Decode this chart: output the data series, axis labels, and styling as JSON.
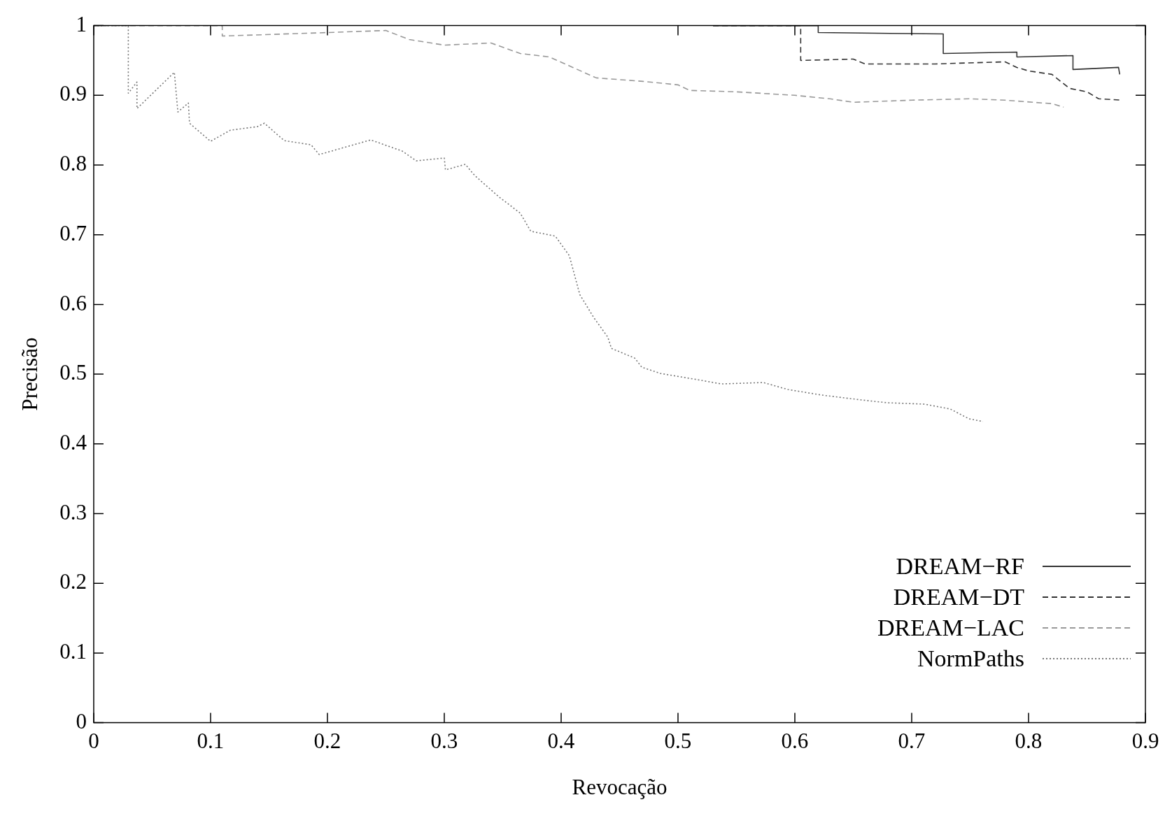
{
  "chart_data": {
    "type": "line",
    "xlabel": "Revocação",
    "ylabel": "Precisão",
    "xlim": [
      0,
      0.9
    ],
    "xticks": [
      0,
      0.1,
      0.2,
      0.3,
      0.4,
      0.5,
      0.6,
      0.7,
      0.8,
      0.9
    ],
    "ylim": [
      0,
      1
    ],
    "yticks": [
      0,
      0.1,
      0.2,
      0.3,
      0.4,
      0.5,
      0.6,
      0.7,
      0.8,
      0.9,
      1
    ],
    "grid": false,
    "legend": "bottom right",
    "marker": "none",
    "series": [
      {
        "name": "DREAM−RF",
        "color": "#333333",
        "line_style": "solid",
        "x": [
          0.53,
          0.62,
          0.62,
          0.727,
          0.727,
          0.79,
          0.79,
          0.838,
          0.838,
          0.877,
          0.878
        ],
        "values": [
          1.0,
          1.0,
          0.99,
          0.988,
          0.96,
          0.962,
          0.955,
          0.957,
          0.937,
          0.94,
          0.93
        ]
      },
      {
        "name": "DREAM−DT",
        "color": "#333333",
        "line_style": "dashed",
        "x": [
          0.53,
          0.605,
          0.605,
          0.65,
          0.66,
          0.72,
          0.78,
          0.79,
          0.8,
          0.82,
          0.835,
          0.85,
          0.86,
          0.88
        ],
        "values": [
          1.0,
          1.0,
          0.95,
          0.952,
          0.945,
          0.945,
          0.948,
          0.94,
          0.935,
          0.93,
          0.91,
          0.905,
          0.895,
          0.893
        ]
      },
      {
        "name": "DREAM−LAC",
        "color": "#999999",
        "line_style": "dashed",
        "x": [
          0,
          0.11,
          0.11,
          0.2,
          0.25,
          0.27,
          0.3,
          0.34,
          0.365,
          0.39,
          0.41,
          0.43,
          0.47,
          0.5,
          0.51,
          0.55,
          0.6,
          0.63,
          0.65,
          0.7,
          0.75,
          0.78,
          0.82,
          0.83
        ],
        "values": [
          1.0,
          1.0,
          0.985,
          0.99,
          0.993,
          0.98,
          0.972,
          0.975,
          0.96,
          0.955,
          0.94,
          0.925,
          0.92,
          0.915,
          0.907,
          0.905,
          0.9,
          0.895,
          0.89,
          0.893,
          0.895,
          0.893,
          0.888,
          0.883
        ]
      },
      {
        "name": "NormPaths",
        "color": "#777777",
        "line_style": "dotted",
        "x": [
          0,
          0.0296,
          0.0296,
          0.037,
          0.037,
          0.069,
          0.072,
          0.081,
          0.082,
          0.1,
          0.117,
          0.14,
          0.146,
          0.163,
          0.186,
          0.193,
          0.237,
          0.264,
          0.276,
          0.3,
          0.301,
          0.318,
          0.326,
          0.347,
          0.365,
          0.374,
          0.395,
          0.407,
          0.416,
          0.428,
          0.44,
          0.443,
          0.463,
          0.469,
          0.485,
          0.517,
          0.537,
          0.573,
          0.594,
          0.623,
          0.657,
          0.679,
          0.711,
          0.733,
          0.749,
          0.761
        ],
        "values": [
          1.0,
          1.0,
          0.903,
          0.919,
          0.881,
          0.933,
          0.876,
          0.889,
          0.86,
          0.834,
          0.85,
          0.855,
          0.86,
          0.835,
          0.829,
          0.815,
          0.836,
          0.82,
          0.806,
          0.81,
          0.793,
          0.801,
          0.785,
          0.754,
          0.731,
          0.705,
          0.698,
          0.67,
          0.614,
          0.581,
          0.553,
          0.537,
          0.523,
          0.51,
          0.501,
          0.492,
          0.486,
          0.488,
          0.478,
          0.47,
          0.463,
          0.459,
          0.457,
          0.45,
          0.436,
          0.432
        ]
      }
    ]
  }
}
